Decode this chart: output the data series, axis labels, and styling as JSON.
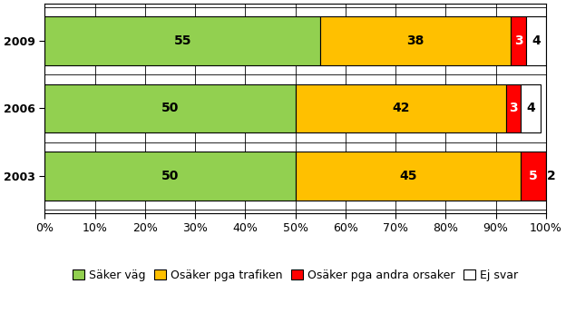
{
  "years": [
    "2009",
    "2006",
    "2003"
  ],
  "series": [
    {
      "label": "Säker väg",
      "values": [
        55,
        50,
        50
      ],
      "color": "#92D050"
    },
    {
      "label": "Osäker pga trafiken",
      "values": [
        38,
        42,
        45
      ],
      "color": "#FFC000"
    },
    {
      "label": "Osäker pga andra orsaker",
      "values": [
        3,
        3,
        5
      ],
      "color": "#FF0000"
    },
    {
      "label": "Ej svar",
      "values": [
        4,
        4,
        2
      ],
      "color": "#FFFFFF"
    }
  ],
  "xlim": [
    0,
    100
  ],
  "xtick_labels": [
    "0%",
    "10%",
    "20%",
    "30%",
    "40%",
    "50%",
    "60%",
    "70%",
    "80%",
    "90%",
    "100%"
  ],
  "xtick_values": [
    0,
    10,
    20,
    30,
    40,
    50,
    60,
    70,
    80,
    90,
    100
  ],
  "bar_height": 0.72,
  "label_fontsize": 10,
  "tick_fontsize": 9,
  "legend_fontsize": 9,
  "edge_color": "#000000",
  "background_color": "#FFFFFF",
  "figsize": [
    6.24,
    3.67
  ],
  "dpi": 100
}
